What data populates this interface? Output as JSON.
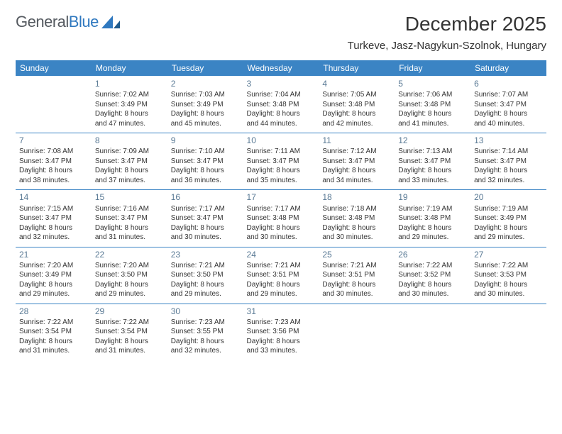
{
  "brand": {
    "part1": "General",
    "part2": "Blue"
  },
  "title": "December 2025",
  "subtitle": "Turkeve, Jasz-Nagykun-Szolnok, Hungary",
  "colors": {
    "header_bg": "#3b84c4",
    "header_fg": "#ffffff",
    "daynum": "#5a7a95",
    "text": "#333333",
    "rule": "#3b84c4",
    "background": "#ffffff"
  },
  "dayHeaders": [
    "Sunday",
    "Monday",
    "Tuesday",
    "Wednesday",
    "Thursday",
    "Friday",
    "Saturday"
  ],
  "weeks": [
    [
      null,
      {
        "n": "1",
        "sr": "Sunrise: 7:02 AM",
        "ss": "Sunset: 3:49 PM",
        "d1": "Daylight: 8 hours",
        "d2": "and 47 minutes."
      },
      {
        "n": "2",
        "sr": "Sunrise: 7:03 AM",
        "ss": "Sunset: 3:49 PM",
        "d1": "Daylight: 8 hours",
        "d2": "and 45 minutes."
      },
      {
        "n": "3",
        "sr": "Sunrise: 7:04 AM",
        "ss": "Sunset: 3:48 PM",
        "d1": "Daylight: 8 hours",
        "d2": "and 44 minutes."
      },
      {
        "n": "4",
        "sr": "Sunrise: 7:05 AM",
        "ss": "Sunset: 3:48 PM",
        "d1": "Daylight: 8 hours",
        "d2": "and 42 minutes."
      },
      {
        "n": "5",
        "sr": "Sunrise: 7:06 AM",
        "ss": "Sunset: 3:48 PM",
        "d1": "Daylight: 8 hours",
        "d2": "and 41 minutes."
      },
      {
        "n": "6",
        "sr": "Sunrise: 7:07 AM",
        "ss": "Sunset: 3:47 PM",
        "d1": "Daylight: 8 hours",
        "d2": "and 40 minutes."
      }
    ],
    [
      {
        "n": "7",
        "sr": "Sunrise: 7:08 AM",
        "ss": "Sunset: 3:47 PM",
        "d1": "Daylight: 8 hours",
        "d2": "and 38 minutes."
      },
      {
        "n": "8",
        "sr": "Sunrise: 7:09 AM",
        "ss": "Sunset: 3:47 PM",
        "d1": "Daylight: 8 hours",
        "d2": "and 37 minutes."
      },
      {
        "n": "9",
        "sr": "Sunrise: 7:10 AM",
        "ss": "Sunset: 3:47 PM",
        "d1": "Daylight: 8 hours",
        "d2": "and 36 minutes."
      },
      {
        "n": "10",
        "sr": "Sunrise: 7:11 AM",
        "ss": "Sunset: 3:47 PM",
        "d1": "Daylight: 8 hours",
        "d2": "and 35 minutes."
      },
      {
        "n": "11",
        "sr": "Sunrise: 7:12 AM",
        "ss": "Sunset: 3:47 PM",
        "d1": "Daylight: 8 hours",
        "d2": "and 34 minutes."
      },
      {
        "n": "12",
        "sr": "Sunrise: 7:13 AM",
        "ss": "Sunset: 3:47 PM",
        "d1": "Daylight: 8 hours",
        "d2": "and 33 minutes."
      },
      {
        "n": "13",
        "sr": "Sunrise: 7:14 AM",
        "ss": "Sunset: 3:47 PM",
        "d1": "Daylight: 8 hours",
        "d2": "and 32 minutes."
      }
    ],
    [
      {
        "n": "14",
        "sr": "Sunrise: 7:15 AM",
        "ss": "Sunset: 3:47 PM",
        "d1": "Daylight: 8 hours",
        "d2": "and 32 minutes."
      },
      {
        "n": "15",
        "sr": "Sunrise: 7:16 AM",
        "ss": "Sunset: 3:47 PM",
        "d1": "Daylight: 8 hours",
        "d2": "and 31 minutes."
      },
      {
        "n": "16",
        "sr": "Sunrise: 7:17 AM",
        "ss": "Sunset: 3:47 PM",
        "d1": "Daylight: 8 hours",
        "d2": "and 30 minutes."
      },
      {
        "n": "17",
        "sr": "Sunrise: 7:17 AM",
        "ss": "Sunset: 3:48 PM",
        "d1": "Daylight: 8 hours",
        "d2": "and 30 minutes."
      },
      {
        "n": "18",
        "sr": "Sunrise: 7:18 AM",
        "ss": "Sunset: 3:48 PM",
        "d1": "Daylight: 8 hours",
        "d2": "and 30 minutes."
      },
      {
        "n": "19",
        "sr": "Sunrise: 7:19 AM",
        "ss": "Sunset: 3:48 PM",
        "d1": "Daylight: 8 hours",
        "d2": "and 29 minutes."
      },
      {
        "n": "20",
        "sr": "Sunrise: 7:19 AM",
        "ss": "Sunset: 3:49 PM",
        "d1": "Daylight: 8 hours",
        "d2": "and 29 minutes."
      }
    ],
    [
      {
        "n": "21",
        "sr": "Sunrise: 7:20 AM",
        "ss": "Sunset: 3:49 PM",
        "d1": "Daylight: 8 hours",
        "d2": "and 29 minutes."
      },
      {
        "n": "22",
        "sr": "Sunrise: 7:20 AM",
        "ss": "Sunset: 3:50 PM",
        "d1": "Daylight: 8 hours",
        "d2": "and 29 minutes."
      },
      {
        "n": "23",
        "sr": "Sunrise: 7:21 AM",
        "ss": "Sunset: 3:50 PM",
        "d1": "Daylight: 8 hours",
        "d2": "and 29 minutes."
      },
      {
        "n": "24",
        "sr": "Sunrise: 7:21 AM",
        "ss": "Sunset: 3:51 PM",
        "d1": "Daylight: 8 hours",
        "d2": "and 29 minutes."
      },
      {
        "n": "25",
        "sr": "Sunrise: 7:21 AM",
        "ss": "Sunset: 3:51 PM",
        "d1": "Daylight: 8 hours",
        "d2": "and 30 minutes."
      },
      {
        "n": "26",
        "sr": "Sunrise: 7:22 AM",
        "ss": "Sunset: 3:52 PM",
        "d1": "Daylight: 8 hours",
        "d2": "and 30 minutes."
      },
      {
        "n": "27",
        "sr": "Sunrise: 7:22 AM",
        "ss": "Sunset: 3:53 PM",
        "d1": "Daylight: 8 hours",
        "d2": "and 30 minutes."
      }
    ],
    [
      {
        "n": "28",
        "sr": "Sunrise: 7:22 AM",
        "ss": "Sunset: 3:54 PM",
        "d1": "Daylight: 8 hours",
        "d2": "and 31 minutes."
      },
      {
        "n": "29",
        "sr": "Sunrise: 7:22 AM",
        "ss": "Sunset: 3:54 PM",
        "d1": "Daylight: 8 hours",
        "d2": "and 31 minutes."
      },
      {
        "n": "30",
        "sr": "Sunrise: 7:23 AM",
        "ss": "Sunset: 3:55 PM",
        "d1": "Daylight: 8 hours",
        "d2": "and 32 minutes."
      },
      {
        "n": "31",
        "sr": "Sunrise: 7:23 AM",
        "ss": "Sunset: 3:56 PM",
        "d1": "Daylight: 8 hours",
        "d2": "and 33 minutes."
      },
      null,
      null,
      null
    ]
  ]
}
